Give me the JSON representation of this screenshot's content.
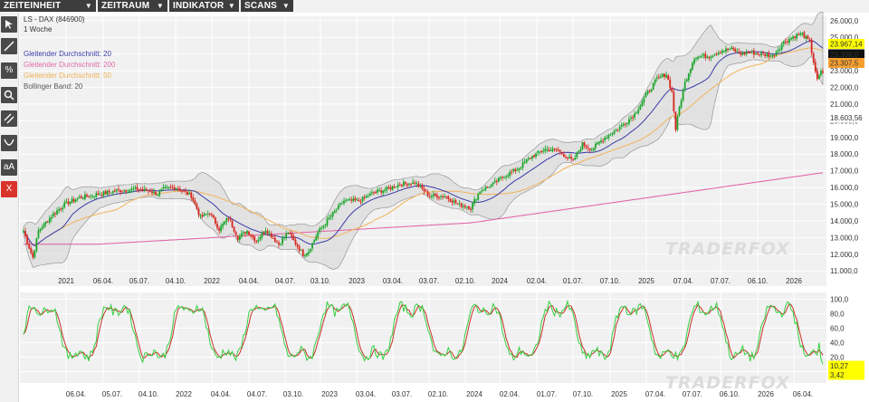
{
  "menu": [
    {
      "label": "ZEITEINHEIT"
    },
    {
      "label": "ZEITRAUM"
    },
    {
      "label": "INDIKATOR"
    },
    {
      "label": "SCANS"
    }
  ],
  "tools": [
    {
      "name": "cursor-icon"
    },
    {
      "name": "line-draw-icon"
    },
    {
      "name": "percent-icon",
      "text": "%"
    },
    {
      "name": "zoom-icon"
    },
    {
      "name": "parallel-lines-icon"
    },
    {
      "name": "curve-icon"
    },
    {
      "name": "text-tool-icon",
      "text": "aA"
    },
    {
      "name": "delete-icon",
      "text": "X"
    }
  ],
  "legend": {
    "title": "LS - DAX (846900)",
    "interval": "1 Woche",
    "sma20": "Gleitender Durchschnitt: 20",
    "sma200": "Gleitender Durchschnitt: 200",
    "sma50": "Gleitender Durchschnitt: 50",
    "bollinger": "Bollinger Band: 20"
  },
  "watermark": "TRADERFOX",
  "colors": {
    "up": "#1aa52a",
    "down": "#d7261e",
    "sma20": "#3a3aa8",
    "sma50": "#f2b35a",
    "sma200": "#e06aa8",
    "band_fill": "#d3d3d3",
    "stoch_k": "#34d141",
    "stoch_d": "#c8302a",
    "last_price_bg": "#ffff00",
    "sma50_bg": "#f7a030"
  },
  "chart_data": [
    {
      "type": "candlestick",
      "title": "LS - DAX (846900)",
      "interval": "1 Woche",
      "ylim": [
        11000,
        26000
      ],
      "y_ticks": [
        "26.000,0",
        "25.000,0",
        "24.000,0",
        "23.000,0",
        "22.000,0",
        "21.000,0",
        "20.000,0",
        "19.000,0",
        "18.000,0",
        "17.000,0",
        "16.000,0",
        "15.000,0",
        "14.000,0",
        "13.000,0",
        "12.000,0",
        "11.000,0"
      ],
      "x_ticks": [
        "2021",
        "06.04.",
        "05.07.",
        "04.10.",
        "2022",
        "04.04.",
        "04.07.",
        "03.10.",
        "2023",
        "03.04.",
        "03.07.",
        "02.10.",
        "2024",
        "02.04.",
        "01.07.",
        "07.10.",
        "2025",
        "07.04.",
        "07.07.",
        "06.10.",
        "2026"
      ],
      "x_range": [
        "2020-10",
        "2026-04"
      ],
      "price_path": [
        [
          0,
          13400
        ],
        [
          3,
          12400
        ],
        [
          5,
          11800
        ],
        [
          8,
          13400
        ],
        [
          15,
          14300
        ],
        [
          22,
          15000
        ],
        [
          30,
          15400
        ],
        [
          40,
          15600
        ],
        [
          50,
          15800
        ],
        [
          60,
          15900
        ],
        [
          68,
          15800
        ],
        [
          72,
          15600
        ],
        [
          75,
          15900
        ],
        [
          82,
          16000
        ],
        [
          90,
          15500
        ],
        [
          95,
          14200
        ],
        [
          100,
          14500
        ],
        [
          105,
          13500
        ],
        [
          110,
          14200
        ],
        [
          115,
          13000
        ],
        [
          120,
          13400
        ],
        [
          125,
          12800
        ],
        [
          130,
          13500
        ],
        [
          137,
          12600
        ],
        [
          142,
          13300
        ],
        [
          150,
          12000
        ],
        [
          153,
          12200
        ],
        [
          158,
          13300
        ],
        [
          165,
          14300
        ],
        [
          172,
          15200
        ],
        [
          180,
          15200
        ],
        [
          188,
          15700
        ],
        [
          195,
          15900
        ],
        [
          202,
          16200
        ],
        [
          210,
          16300
        ],
        [
          218,
          15500
        ],
        [
          226,
          15500
        ],
        [
          233,
          15000
        ],
        [
          240,
          14800
        ],
        [
          245,
          15800
        ],
        [
          252,
          16200
        ],
        [
          258,
          16700
        ],
        [
          265,
          17100
        ],
        [
          272,
          17800
        ],
        [
          280,
          18300
        ],
        [
          287,
          18200
        ],
        [
          292,
          17800
        ],
        [
          295,
          17600
        ],
        [
          300,
          18600
        ],
        [
          305,
          18300
        ],
        [
          312,
          19000
        ],
        [
          320,
          19600
        ],
        [
          328,
          20400
        ],
        [
          335,
          21700
        ],
        [
          340,
          22500
        ],
        [
          343,
          22700
        ],
        [
          345,
          22800
        ],
        [
          348,
          21700
        ],
        [
          350,
          19500
        ],
        [
          352,
          20800
        ],
        [
          355,
          22300
        ],
        [
          360,
          23800
        ],
        [
          368,
          23900
        ],
        [
          375,
          24200
        ],
        [
          380,
          24300
        ],
        [
          385,
          24000
        ],
        [
          390,
          24100
        ],
        [
          395,
          24000
        ],
        [
          402,
          23900
        ],
        [
          408,
          24700
        ],
        [
          414,
          25100
        ],
        [
          418,
          25200
        ],
        [
          422,
          24700
        ],
        [
          426,
          22400
        ],
        [
          428,
          22900
        ]
      ],
      "series": [
        {
          "name": "Gleitender Durchschnitt: 20"
        },
        {
          "name": "Gleitender Durchschnitt: 200"
        },
        {
          "name": "Gleitender Durchschnitt: 50"
        },
        {
          "name": "Bollinger Band: 20"
        }
      ],
      "price_labels": [
        "23.967,14",
        "23.308,0",
        "23.307,5",
        "18.603,56"
      ],
      "price_label_values": [
        23967.14,
        23308.0,
        23307.5,
        18603.56
      ]
    },
    {
      "type": "line",
      "indicator": "stochastic",
      "ylim": [
        0,
        100
      ],
      "y_ticks": [
        "100,0",
        "80,0",
        "60,0",
        "40,0",
        "20,0",
        "0,0"
      ],
      "x_ticks": [
        "06.04.",
        "05.07.",
        "04.10.",
        "2022",
        "04.04.",
        "04.07.",
        "03.10.",
        "2023",
        "03.04.",
        "03.07.",
        "02.10.",
        "2024",
        "02.04.",
        "01.07.",
        "07.10.",
        "2025",
        "07.04.",
        "07.07.",
        "06.10.",
        "2026",
        "06.04."
      ],
      "value_labels": [
        "10,27",
        "3,42"
      ],
      "value_label_values": [
        10.27,
        3.42
      ]
    }
  ]
}
